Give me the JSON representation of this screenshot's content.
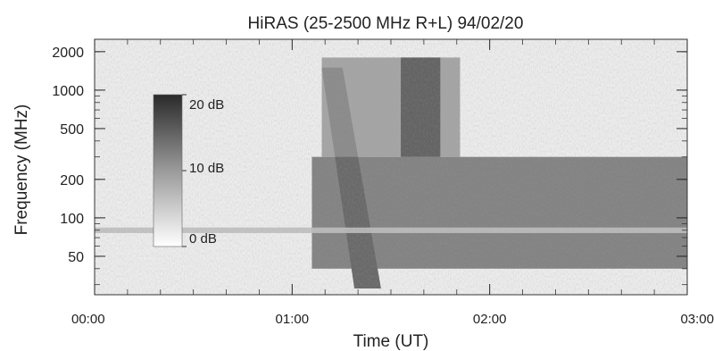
{
  "chart_data": {
    "type": "heatmap",
    "title": "HiRAS (25-2500 MHz R+L) 94/02/20",
    "xlabel": "Time (UT)",
    "ylabel": "Frequency (MHz)",
    "x_range_hours": [
      0,
      3
    ],
    "y_range_mhz": [
      25,
      2500
    ],
    "y_scale": "log",
    "x_ticks": [
      {
        "label": "00:00",
        "value": 0
      },
      {
        "label": "01:00",
        "value": 1
      },
      {
        "label": "02:00",
        "value": 2
      },
      {
        "label": "03:00",
        "value": 3
      }
    ],
    "y_ticks": [
      {
        "label": "2000",
        "value": 2000
      },
      {
        "label": "1000",
        "value": 1000
      },
      {
        "label": "500",
        "value": 500
      },
      {
        "label": "200",
        "value": 200
      },
      {
        "label": "100",
        "value": 100
      },
      {
        "label": "50",
        "value": 50
      }
    ],
    "colorbar": {
      "min_db": 0,
      "max_db": 20,
      "ticks": [
        {
          "label": "20 dB",
          "value": 20
        },
        {
          "label": "10 dB",
          "value": 10
        },
        {
          "label": "0 dB",
          "value": 0
        }
      ]
    },
    "burst_onset_hours": 1.15,
    "features": [
      {
        "type": "drifting-burst",
        "t_start": 1.15,
        "t_end": 1.45,
        "f_high": 1500,
        "f_low": 28,
        "intensity_db": 18
      },
      {
        "type": "continuum",
        "t_start": 1.1,
        "t_end": 3.0,
        "f_low": 40,
        "f_high": 300,
        "intensity_db": 14
      },
      {
        "type": "continuum-upper",
        "t_start": 1.15,
        "t_end": 1.85,
        "f_low": 300,
        "f_high": 1800,
        "intensity_db": 10
      },
      {
        "type": "lane",
        "t_start": 1.55,
        "t_end": 1.75,
        "f_low": 300,
        "f_high": 1800,
        "intensity_db": 16
      },
      {
        "type": "background-band",
        "t_start": 0,
        "t_end": 3.0,
        "f_low": 76,
        "f_high": 84,
        "intensity_db": 6
      }
    ]
  }
}
